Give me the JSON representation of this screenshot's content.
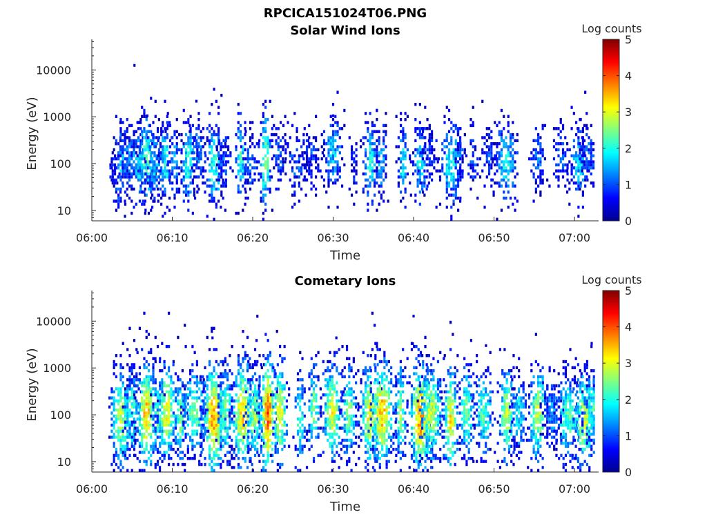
{
  "figure": {
    "title": "RPCICA151024T06.PNG"
  },
  "chart_data": [
    {
      "type": "heatmap",
      "title": "Solar Wind Ions",
      "xlabel": "Time",
      "ylabel": "Energy (eV)",
      "xticks": [
        "06:00",
        "06:10",
        "06:20",
        "06:30",
        "06:40",
        "06:50",
        "07:00"
      ],
      "xlim_minutes": [
        0,
        63
      ],
      "yscale": "log",
      "yticks": [
        "10",
        "100",
        "1000",
        "10000"
      ],
      "ylim": [
        6,
        45000
      ],
      "colorbar": {
        "label": "Log counts",
        "range": [
          0,
          5
        ],
        "ticks": [
          "0",
          "1",
          "2",
          "3",
          "4",
          "5"
        ]
      },
      "colormap": [
        "#00008f",
        "#0000ff",
        "#0080ff",
        "#00ffff",
        "#80ff80",
        "#ffff00",
        "#ff8000",
        "#ff0000",
        "#800000"
      ],
      "bursts": [
        {
          "t": 2.6,
          "e": 90,
          "peak": 0.6
        },
        {
          "t": 3.6,
          "e": 90,
          "peak": 1.6
        },
        {
          "t": 4.4,
          "e": 130,
          "peak": 1.3
        },
        {
          "t": 5.8,
          "e": 100,
          "peak": 1.7
        },
        {
          "t": 6.8,
          "e": 130,
          "peak": 2.2
        },
        {
          "t": 7.8,
          "e": 90,
          "peak": 1.5
        },
        {
          "t": 9.1,
          "e": 110,
          "peak": 2.0
        },
        {
          "t": 10.3,
          "e": 120,
          "peak": 1.3
        },
        {
          "t": 12.0,
          "e": 110,
          "peak": 2.0
        },
        {
          "t": 13.3,
          "e": 160,
          "peak": 1.2
        },
        {
          "t": 15.2,
          "e": 90,
          "peak": 2.1
        },
        {
          "t": 16.4,
          "e": 110,
          "peak": 1.0
        },
        {
          "t": 18.5,
          "e": 130,
          "peak": 2.1
        },
        {
          "t": 19.7,
          "e": 110,
          "peak": 1.1
        },
        {
          "t": 21.6,
          "e": 120,
          "peak": 2.5
        },
        {
          "t": 23.2,
          "e": 140,
          "peak": 1.0
        },
        {
          "t": 25.5,
          "e": 110,
          "peak": 1.0
        },
        {
          "t": 27.3,
          "e": 140,
          "peak": 0.8
        },
        {
          "t": 30.0,
          "e": 170,
          "peak": 1.6
        },
        {
          "t": 32.6,
          "e": 110,
          "peak": 0.8
        },
        {
          "t": 34.6,
          "e": 110,
          "peak": 1.9
        },
        {
          "t": 36.0,
          "e": 110,
          "peak": 1.5
        },
        {
          "t": 38.7,
          "e": 110,
          "peak": 1.7
        },
        {
          "t": 40.8,
          "e": 100,
          "peak": 1.8
        },
        {
          "t": 42.0,
          "e": 160,
          "peak": 0.8
        },
        {
          "t": 44.7,
          "e": 100,
          "peak": 1.9
        },
        {
          "t": 45.8,
          "e": 140,
          "peak": 1.0
        },
        {
          "t": 47.4,
          "e": 120,
          "peak": 0.9
        },
        {
          "t": 49.4,
          "e": 140,
          "peak": 0.9
        },
        {
          "t": 51.5,
          "e": 110,
          "peak": 1.8
        },
        {
          "t": 55.5,
          "e": 130,
          "peak": 1.1
        },
        {
          "t": 58.3,
          "e": 120,
          "peak": 0.9
        },
        {
          "t": 60.5,
          "e": 100,
          "peak": 1.6
        },
        {
          "t": 61.8,
          "e": 140,
          "peak": 1.0
        }
      ],
      "outliers": [
        {
          "t": 5.3,
          "e": 12500,
          "value": 0.4
        },
        {
          "t": 13.0,
          "e": 2150,
          "value": 0.4
        },
        {
          "t": 30.0,
          "e": 1050,
          "value": 0.5
        },
        {
          "t": 6.9,
          "e": 1050,
          "value": 0.5
        }
      ]
    },
    {
      "type": "heatmap",
      "title": "Cometary Ions",
      "xlabel": "Time",
      "ylabel": "Energy (eV)",
      "xticks": [
        "06:00",
        "06:10",
        "06:20",
        "06:30",
        "06:40",
        "06:50",
        "07:00"
      ],
      "xlim_minutes": [
        0,
        63
      ],
      "yscale": "log",
      "yticks": [
        "10",
        "100",
        "1000",
        "10000"
      ],
      "ylim": [
        6,
        45000
      ],
      "colorbar": {
        "label": "Log counts",
        "range": [
          0,
          5
        ],
        "ticks": [
          "0",
          "1",
          "2",
          "3",
          "4",
          "5"
        ]
      },
      "colormap": [
        "#00008f",
        "#0000ff",
        "#0080ff",
        "#00ffff",
        "#80ff80",
        "#ffff00",
        "#ff8000",
        "#ff0000",
        "#800000"
      ],
      "bursts": [
        {
          "t": 3.6,
          "e": 85,
          "peak": 2.7
        },
        {
          "t": 5.0,
          "e": 110,
          "peak": 2.2
        },
        {
          "t": 6.8,
          "e": 100,
          "peak": 3.4
        },
        {
          "t": 8.2,
          "e": 90,
          "peak": 2.2
        },
        {
          "t": 9.3,
          "e": 110,
          "peak": 3.0
        },
        {
          "t": 11.0,
          "e": 80,
          "peak": 2.5
        },
        {
          "t": 12.8,
          "e": 110,
          "peak": 2.4
        },
        {
          "t": 15.2,
          "e": 85,
          "peak": 3.6
        },
        {
          "t": 16.6,
          "e": 110,
          "peak": 2.5
        },
        {
          "t": 18.8,
          "e": 100,
          "peak": 3.3
        },
        {
          "t": 20.3,
          "e": 90,
          "peak": 2.6
        },
        {
          "t": 21.9,
          "e": 100,
          "peak": 3.9
        },
        {
          "t": 23.4,
          "e": 110,
          "peak": 3.1
        },
        {
          "t": 25.9,
          "e": 70,
          "peak": 2.3
        },
        {
          "t": 27.6,
          "e": 120,
          "peak": 2.5
        },
        {
          "t": 29.9,
          "e": 120,
          "peak": 3.0
        },
        {
          "t": 32.0,
          "e": 110,
          "peak": 2.5
        },
        {
          "t": 34.6,
          "e": 100,
          "peak": 3.2
        },
        {
          "t": 36.1,
          "e": 110,
          "peak": 3.4
        },
        {
          "t": 38.4,
          "e": 110,
          "peak": 2.6
        },
        {
          "t": 40.9,
          "e": 90,
          "peak": 3.6
        },
        {
          "t": 42.2,
          "e": 110,
          "peak": 2.8
        },
        {
          "t": 44.6,
          "e": 80,
          "peak": 3.1
        },
        {
          "t": 46.6,
          "e": 110,
          "peak": 2.4
        },
        {
          "t": 48.7,
          "e": 110,
          "peak": 2.2
        },
        {
          "t": 51.6,
          "e": 100,
          "peak": 2.8
        },
        {
          "t": 53.1,
          "e": 110,
          "peak": 1.8
        },
        {
          "t": 55.5,
          "e": 110,
          "peak": 2.8
        },
        {
          "t": 57.2,
          "e": 110,
          "peak": 1.4
        },
        {
          "t": 59.2,
          "e": 90,
          "peak": 2.3
        },
        {
          "t": 61.3,
          "e": 80,
          "peak": 2.8
        },
        {
          "t": 62.4,
          "e": 130,
          "peak": 2.0
        }
      ],
      "outliers": [
        {
          "t": 40.0,
          "e": 12800,
          "value": 0.4
        },
        {
          "t": 15.0,
          "e": 4400,
          "value": 0.4
        },
        {
          "t": 30.4,
          "e": 4400,
          "value": 0.4
        },
        {
          "t": 49.0,
          "e": 3000,
          "value": 0.4
        },
        {
          "t": 39.9,
          "e": 3300,
          "value": 0.4
        }
      ]
    }
  ]
}
